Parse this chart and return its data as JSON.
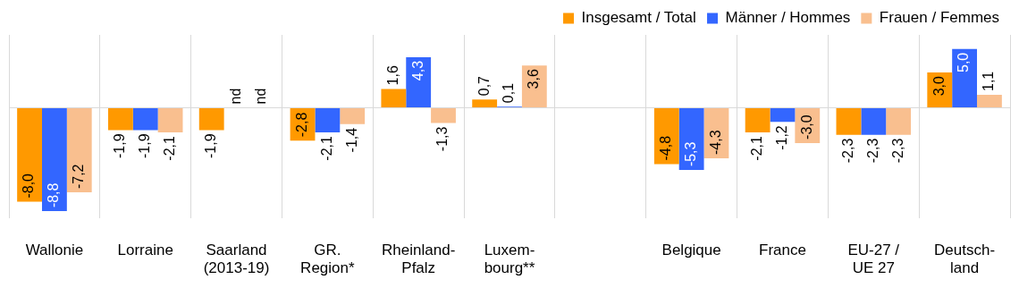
{
  "chart_data": {
    "type": "bar",
    "categories": [
      "Wallonie",
      "Lorraine",
      "Saarland\n(2013-19)",
      "GR.\nRegion*",
      "Rheinland-\nPfalz",
      "Luxem-\nbourg**",
      null,
      "Belgique",
      "France",
      "EU-27 /\nUE 27",
      "Deutsch-\nland"
    ],
    "series": [
      {
        "name": "Insgesamt / Total",
        "color": "#ff9900",
        "values": [
          -8.0,
          -1.9,
          -1.9,
          -2.8,
          1.6,
          0.7,
          null,
          -4.8,
          -2.1,
          -2.3,
          3.0
        ],
        "value_labels": [
          "-8,0",
          "-1,9",
          "-1,9",
          "-2,8",
          "1,6",
          "0,7",
          null,
          "-4,8",
          "-2,1",
          "-2,3",
          "3,0"
        ]
      },
      {
        "name": "Männer / Hommes",
        "color": "#3366ff",
        "values": [
          -8.8,
          -1.9,
          null,
          -2.1,
          4.3,
          0.1,
          null,
          -5.3,
          -1.2,
          -2.3,
          5.0
        ],
        "value_labels": [
          "-8,8",
          "-1,9",
          "nd",
          "-2,1",
          "4,3",
          "0,1",
          null,
          "-5,3",
          "-1,2",
          "-2,3",
          "5,0"
        ]
      },
      {
        "name": "Frauen / Femmes",
        "color": "#f9bf8f",
        "values": [
          -7.2,
          -2.1,
          null,
          -1.4,
          -1.3,
          3.6,
          null,
          -4.3,
          -3.0,
          -2.3,
          1.1
        ],
        "value_labels": [
          "-7,2",
          "-2,1",
          "nd",
          "-1,4",
          "-1,3",
          "3,6",
          null,
          "-4,3",
          "-3,0",
          "-2,3",
          "1,1"
        ]
      }
    ],
    "grid": "x",
    "legend": "top right"
  }
}
